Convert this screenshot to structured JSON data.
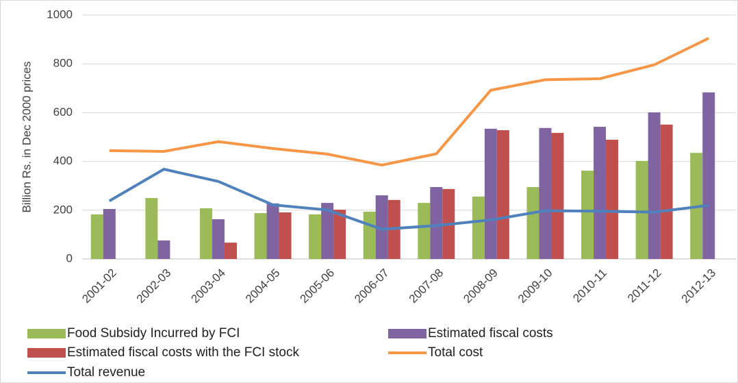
{
  "chart_data": {
    "type": "combo",
    "y_label": "Billion Rs. in Dec 2000 prices",
    "categories": [
      "2001-02",
      "2002-03",
      "2003-04",
      "2004-05",
      "2005-06",
      "2006-07",
      "2007-08",
      "2008-09",
      "2009-10",
      "2010-11",
      "2011-12",
      "2012-13"
    ],
    "series": [
      {
        "name": "Food Subsidy Incurred by FCI",
        "type": "bar",
        "color": "#9bbb59",
        "values": [
          183,
          250,
          208,
          188,
          183,
          194,
          230,
          256,
          295,
          362,
          402,
          435
        ]
      },
      {
        "name": "Estimated fiscal costs",
        "type": "bar",
        "color": "#8064a2",
        "values": [
          205,
          76,
          163,
          228,
          230,
          261,
          295,
          534,
          537,
          542,
          601,
          683
        ]
      },
      {
        "name": "Estimated fiscal costs with the FCI stock",
        "type": "bar",
        "color": "#c0504d",
        "values": [
          null,
          null,
          67,
          191,
          202,
          242,
          287,
          528,
          517,
          489,
          551,
          null
        ]
      },
      {
        "name": "Total cost",
        "type": "line",
        "color": "#f79646",
        "values": [
          444,
          441,
          481,
          453,
          430,
          385,
          431,
          692,
          735,
          739,
          796,
          905
        ]
      },
      {
        "name": "Total revenue",
        "type": "line",
        "color": "#4f81bd",
        "values": [
          238,
          368,
          318,
          222,
          201,
          122,
          137,
          160,
          198,
          196,
          192,
          220
        ]
      }
    ],
    "ylim": [
      0,
      1000
    ],
    "yticks": [
      0,
      200,
      400,
      600,
      800,
      1000
    ],
    "grid": true
  }
}
